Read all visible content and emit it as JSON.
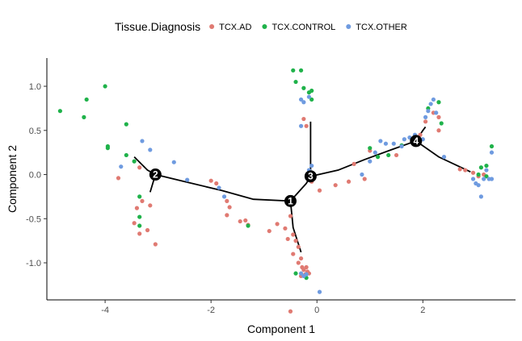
{
  "chart_data": {
    "type": "scatter",
    "xlabel": "Component 1",
    "ylabel": "Component 2",
    "xlim": [
      -5.1,
      3.75
    ],
    "ylim": [
      -1.42,
      1.32
    ],
    "xticks": [
      -4,
      -2,
      0,
      2
    ],
    "xtick_labels": [
      "-4",
      "-2",
      "0",
      "2"
    ],
    "yticks": [
      -1.0,
      -0.5,
      0.0,
      0.5,
      1.0
    ],
    "ytick_labels": [
      "-1.0",
      "-0.5",
      "0.0",
      "0.5",
      "1.0"
    ],
    "grid": false,
    "legend": {
      "title": "Tissue.Diagnosis",
      "placement": "top",
      "entries": [
        {
          "name": "TCX.AD",
          "color": "#e07a72"
        },
        {
          "name": "TCX.CONTROL",
          "color": "#1fb24a"
        },
        {
          "name": "TCX.OTHER",
          "color": "#6f9be0"
        }
      ]
    },
    "series": [
      {
        "name": "TCX.AD",
        "color": "#e07a72",
        "points": [
          [
            -3.75,
            -0.04
          ],
          [
            -3.35,
            0.08
          ],
          [
            -3.3,
            -0.3
          ],
          [
            -3.15,
            -0.35
          ],
          [
            -3.35,
            -0.67
          ],
          [
            -3.2,
            -0.63
          ],
          [
            -3.05,
            -0.79
          ],
          [
            -3.45,
            -0.55
          ],
          [
            -3.4,
            -0.38
          ],
          [
            -3.05,
            0.02
          ],
          [
            -2.0,
            -0.07
          ],
          [
            -1.9,
            -0.1
          ],
          [
            -1.7,
            -0.3
          ],
          [
            -1.65,
            -0.37
          ],
          [
            -1.7,
            -0.46
          ],
          [
            -1.45,
            -0.53
          ],
          [
            -1.35,
            -0.52
          ],
          [
            -1.3,
            -0.57
          ],
          [
            -0.9,
            -0.64
          ],
          [
            -0.75,
            -0.56
          ],
          [
            -0.6,
            -0.61
          ],
          [
            -0.55,
            -0.73
          ],
          [
            -0.5,
            -0.47
          ],
          [
            -0.45,
            -0.68
          ],
          [
            -0.4,
            -0.75
          ],
          [
            -0.35,
            -0.82
          ],
          [
            -0.45,
            -0.9
          ],
          [
            -0.3,
            -0.95
          ],
          [
            -0.35,
            -1.0
          ],
          [
            -0.28,
            -1.05
          ],
          [
            -0.25,
            -1.08
          ],
          [
            -0.3,
            -1.15
          ],
          [
            -0.2,
            -1.05
          ],
          [
            -0.15,
            -1.12
          ],
          [
            -0.22,
            -1.13
          ],
          [
            -0.18,
            -1.1
          ],
          [
            -0.25,
            0.63
          ],
          [
            -0.1,
            -0.08
          ],
          [
            0.05,
            -0.18
          ],
          [
            0.35,
            -0.12
          ],
          [
            0.6,
            -0.08
          ],
          [
            0.9,
            -0.05
          ],
          [
            0.7,
            0.12
          ],
          [
            1.0,
            0.27
          ],
          [
            1.5,
            0.22
          ],
          [
            2.05,
            0.6
          ],
          [
            2.3,
            0.65
          ],
          [
            2.2,
            0.7
          ],
          [
            2.3,
            0.5
          ],
          [
            2.7,
            0.06
          ],
          [
            2.8,
            0.05
          ],
          [
            2.95,
            0.02
          ],
          [
            3.05,
            -0.02
          ],
          [
            3.15,
            0.0
          ],
          [
            1.95,
            0.45
          ],
          [
            -0.2,
            0.55
          ],
          [
            -0.5,
            -1.55
          ]
        ]
      },
      {
        "name": "TCX.CONTROL",
        "color": "#1fb24a",
        "points": [
          [
            -4.85,
            0.72
          ],
          [
            -4.4,
            0.65
          ],
          [
            -4.35,
            0.85
          ],
          [
            -4.0,
            1.0
          ],
          [
            -3.95,
            0.32
          ],
          [
            -3.95,
            0.3
          ],
          [
            -3.6,
            0.22
          ],
          [
            -3.6,
            0.57
          ],
          [
            -3.45,
            0.15
          ],
          [
            -3.35,
            -0.48
          ],
          [
            -3.35,
            -0.58
          ],
          [
            -3.35,
            -0.25
          ],
          [
            -1.3,
            -0.58
          ],
          [
            -0.45,
            1.18
          ],
          [
            -0.3,
            1.18
          ],
          [
            -0.4,
            1.05
          ],
          [
            -0.25,
            0.98
          ],
          [
            -0.15,
            0.93
          ],
          [
            -0.1,
            0.95
          ],
          [
            -0.1,
            0.85
          ],
          [
            -0.2,
            -1.17
          ],
          [
            -0.4,
            -1.12
          ],
          [
            1.0,
            0.3
          ],
          [
            1.15,
            0.2
          ],
          [
            1.35,
            0.22
          ],
          [
            1.6,
            0.33
          ],
          [
            2.1,
            0.75
          ],
          [
            2.3,
            0.82
          ],
          [
            2.35,
            0.58
          ],
          [
            3.1,
            0.08
          ],
          [
            3.2,
            0.1
          ],
          [
            3.3,
            0.32
          ],
          [
            3.05,
            0.0
          ],
          [
            3.2,
            -0.02
          ]
        ]
      },
      {
        "name": "TCX.OTHER",
        "color": "#6f9be0",
        "points": [
          [
            -3.7,
            0.09
          ],
          [
            -3.15,
            0.28
          ],
          [
            -3.3,
            0.38
          ],
          [
            -2.7,
            0.14
          ],
          [
            -2.45,
            -0.06
          ],
          [
            -1.85,
            -0.15
          ],
          [
            -1.75,
            -0.25
          ],
          [
            -0.3,
            0.85
          ],
          [
            -0.25,
            0.82
          ],
          [
            -0.15,
            0.88
          ],
          [
            -0.3,
            0.55
          ],
          [
            -0.1,
            0.1
          ],
          [
            -0.15,
            0.05
          ],
          [
            -0.25,
            -1.15
          ],
          [
            -0.3,
            -1.12
          ],
          [
            -0.2,
            -1.13
          ],
          [
            0.05,
            -1.33
          ],
          [
            0.85,
            0.0
          ],
          [
            1.0,
            0.15
          ],
          [
            1.1,
            0.25
          ],
          [
            1.2,
            0.38
          ],
          [
            1.3,
            0.35
          ],
          [
            1.45,
            0.35
          ],
          [
            1.6,
            0.32
          ],
          [
            1.65,
            0.4
          ],
          [
            1.75,
            0.42
          ],
          [
            1.85,
            0.45
          ],
          [
            2.05,
            0.65
          ],
          [
            2.1,
            0.72
          ],
          [
            2.15,
            0.8
          ],
          [
            2.2,
            0.85
          ],
          [
            2.25,
            0.7
          ],
          [
            2.0,
            0.4
          ],
          [
            2.4,
            0.2
          ],
          [
            2.95,
            -0.05
          ],
          [
            3.0,
            -0.1
          ],
          [
            3.05,
            -0.12
          ],
          [
            3.1,
            -0.25
          ],
          [
            3.15,
            -0.05
          ],
          [
            3.2,
            0.05
          ],
          [
            3.25,
            -0.05
          ],
          [
            3.3,
            0.25
          ],
          [
            3.3,
            -0.05
          ]
        ]
      }
    ],
    "trajectory": [
      [
        [
          -3.45,
          0.2
        ],
        [
          -3.2,
          0.05
        ],
        [
          -3.05,
          0.0
        ]
      ],
      [
        [
          -3.05,
          0.0
        ],
        [
          -3.1,
          -0.1
        ],
        [
          -3.15,
          -0.2
        ]
      ],
      [
        [
          -3.05,
          0.0
        ],
        [
          -2.5,
          -0.08
        ],
        [
          -1.8,
          -0.18
        ],
        [
          -1.2,
          -0.28
        ],
        [
          -0.5,
          -0.3
        ]
      ],
      [
        [
          -0.5,
          -0.3
        ],
        [
          -0.45,
          -0.6
        ],
        [
          -0.3,
          -0.88
        ]
      ],
      [
        [
          -0.5,
          -0.3
        ],
        [
          -0.2,
          -0.1
        ],
        [
          -0.12,
          -0.02
        ]
      ],
      [
        [
          -0.12,
          -0.02
        ],
        [
          -0.12,
          0.6
        ]
      ],
      [
        [
          -0.12,
          -0.02
        ],
        [
          0.4,
          0.05
        ],
        [
          0.9,
          0.17
        ],
        [
          1.4,
          0.28
        ],
        [
          1.87,
          0.38
        ]
      ],
      [
        [
          1.87,
          0.38
        ],
        [
          2.3,
          0.2
        ],
        [
          2.9,
          0.03
        ]
      ],
      [
        [
          1.87,
          0.38
        ],
        [
          2.0,
          0.5
        ],
        [
          2.05,
          0.54
        ]
      ]
    ],
    "nodes": [
      {
        "label": "1",
        "x": -0.5,
        "y": -0.3
      },
      {
        "label": "2",
        "x": -3.05,
        "y": 0.0
      },
      {
        "label": "3",
        "x": -0.12,
        "y": -0.02
      },
      {
        "label": "4",
        "x": 1.87,
        "y": 0.38
      }
    ]
  }
}
